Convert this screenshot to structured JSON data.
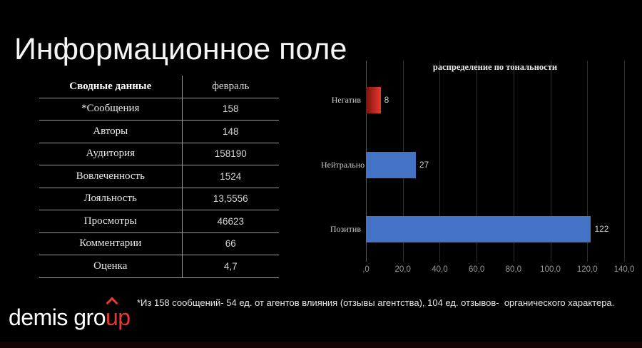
{
  "slide": {
    "title": "Информационное поле",
    "footnote": "*Из 158 сообщений- 54 ед. от агентов влияния (отзывы агентства), 104 ед. отзывов-  органического характера.",
    "background": "#000000",
    "accent_red": "#e8392f"
  },
  "logo": {
    "text_white": "demis gro",
    "text_red_u": "u",
    "text_red_p": "p"
  },
  "table": {
    "headers": [
      "Сводные данные",
      "февраль"
    ],
    "rows": [
      [
        "*Сообщения",
        "158"
      ],
      [
        "Авторы",
        "148"
      ],
      [
        "Аудитория",
        "158190"
      ],
      [
        "Вовлеченность",
        "1524"
      ],
      [
        "Лояльность",
        "13,5556"
      ],
      [
        "Просмотры",
        "46623"
      ],
      [
        "Комментарии",
        "66"
      ],
      [
        "Оценка",
        "4,7"
      ]
    ]
  },
  "chart_data": {
    "type": "bar",
    "orientation": "horizontal",
    "title": "распределение по тональности",
    "categories": [
      "Негатив",
      "Нейтрально",
      "Позитив"
    ],
    "values": [
      8,
      27,
      122
    ],
    "data_labels": [
      "8",
      "27",
      "122"
    ],
    "bar_colors": [
      "#e8392c",
      "#4472c4",
      "#4472c4"
    ],
    "bar_gradient_start": [
      "#7c120d",
      null,
      null
    ],
    "xlim": [
      0,
      140
    ],
    "xtick_values": [
      0,
      20,
      40,
      60,
      80,
      100,
      120,
      140
    ],
    "xtick_labels": [
      ",0",
      "20,0",
      "40,0",
      "60,0",
      "80,0",
      "100,0",
      "120,0",
      "140,0"
    ],
    "grid": true,
    "legend": false
  }
}
